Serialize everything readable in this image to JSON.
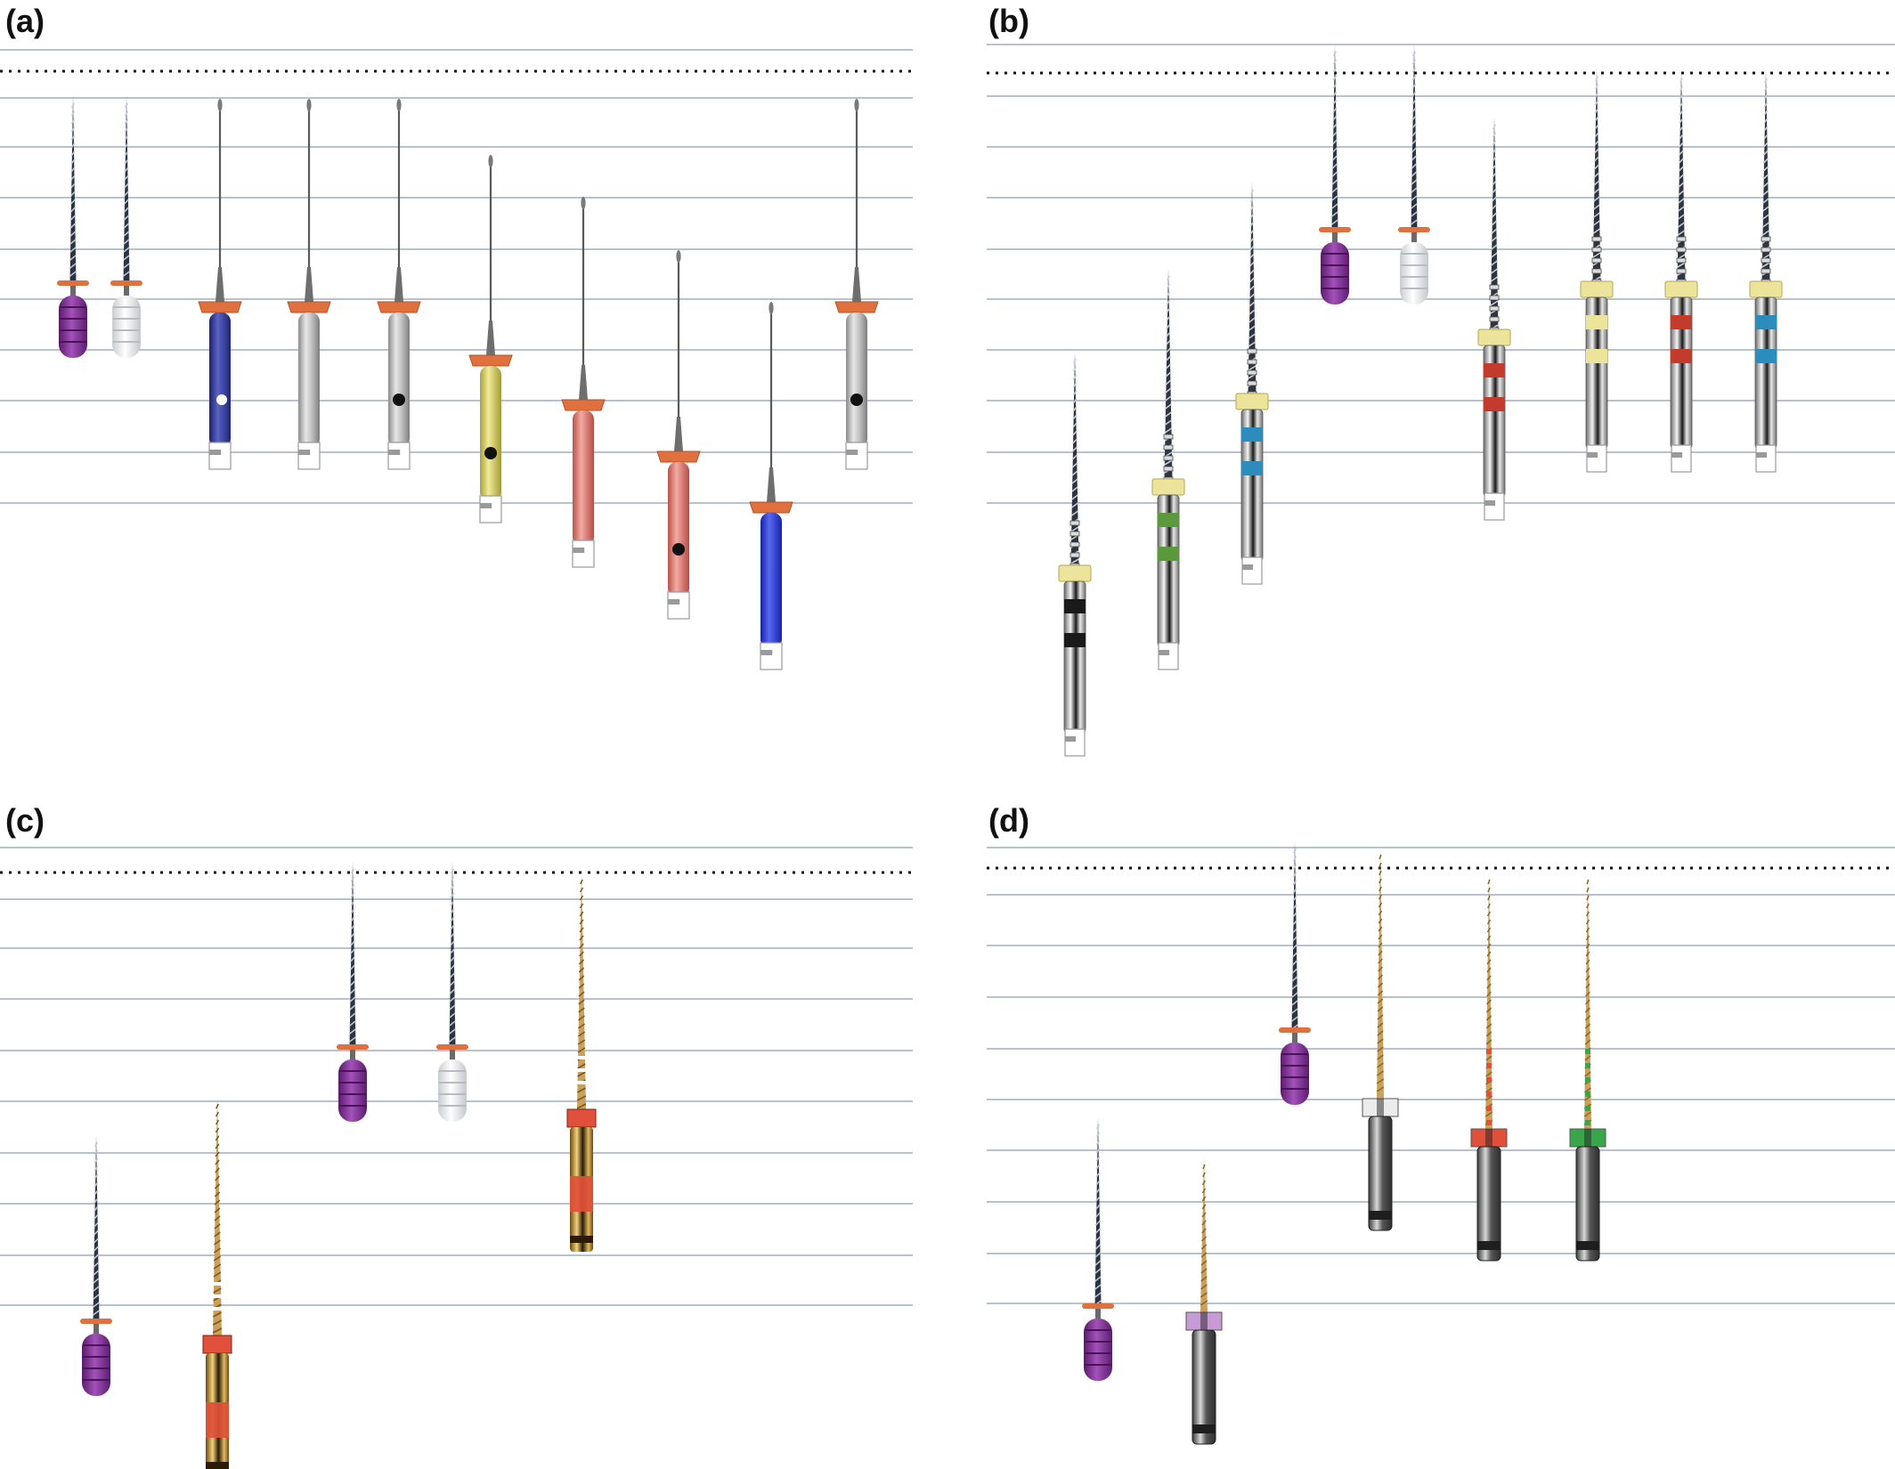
{
  "colors": {
    "guide_line": "#b7c1cf",
    "reference_line": "#111111",
    "stopper": "#e0703e",
    "handle_purple": "#7a2e8e",
    "handle_white": "#eef0f2",
    "steel": "#b9b9b9",
    "shaft_blue": "#2e3aa8",
    "shaft_yellow": "#d9d46a",
    "shaft_red": "#e07b72",
    "shaft_bright_blue": "#2336d6",
    "ring_cream": "#ece49a",
    "band_green": "#5b9a3c",
    "band_teal": "#2c8cbc",
    "band_red": "#c23b2c",
    "band_lilac": "#c79bd6",
    "gold": "#caa05a",
    "red_band_gold": "#e0503a",
    "ring_green": "#3aa64a"
  },
  "panels": [
    {
      "label": "(a)",
      "instruments": [
        {
          "kind": "hand",
          "handle_color": "purple"
        },
        {
          "kind": "hand",
          "handle_color": "white"
        },
        {
          "kind": "engine-shaft",
          "shaft_color": "dark-blue",
          "dot": "white"
        },
        {
          "kind": "engine-shaft",
          "shaft_color": "steel",
          "dot": "none"
        },
        {
          "kind": "engine-shaft",
          "shaft_color": "steel",
          "dot": "black"
        },
        {
          "kind": "engine-shaft",
          "shaft_color": "yellow",
          "dot": "black"
        },
        {
          "kind": "engine-shaft",
          "shaft_color": "red",
          "dot": "none"
        },
        {
          "kind": "engine-shaft",
          "shaft_color": "red",
          "dot": "black"
        },
        {
          "kind": "engine-shaft",
          "shaft_color": "bright-blue",
          "dot": "none"
        },
        {
          "kind": "engine-shaft",
          "shaft_color": "steel",
          "dot": "black"
        }
      ]
    },
    {
      "label": "(b)",
      "instruments": [
        {
          "kind": "engine-banded",
          "band_color": "black"
        },
        {
          "kind": "engine-banded",
          "band_color": "green"
        },
        {
          "kind": "engine-banded",
          "band_color": "teal"
        },
        {
          "kind": "hand",
          "handle_color": "purple"
        },
        {
          "kind": "hand",
          "handle_color": "white"
        },
        {
          "kind": "engine-banded",
          "band_color": "red"
        },
        {
          "kind": "engine-banded",
          "band_color": "yellow"
        },
        {
          "kind": "engine-banded",
          "band_color": "red"
        },
        {
          "kind": "engine-banded",
          "band_color": "teal"
        }
      ]
    },
    {
      "label": "(c)",
      "instruments": [
        {
          "kind": "hand",
          "handle_color": "purple"
        },
        {
          "kind": "engine-gold",
          "band_color": "red"
        },
        {
          "kind": "hand",
          "handle_color": "purple"
        },
        {
          "kind": "hand",
          "handle_color": "white"
        },
        {
          "kind": "engine-gold",
          "band_color": "red"
        }
      ]
    },
    {
      "label": "(d)",
      "instruments": [
        {
          "kind": "hand",
          "handle_color": "purple"
        },
        {
          "kind": "engine-ring",
          "ring_color": "lilac"
        },
        {
          "kind": "hand",
          "handle_color": "purple"
        },
        {
          "kind": "engine-ring",
          "ring_color": "white"
        },
        {
          "kind": "engine-ring",
          "ring_color": "red"
        },
        {
          "kind": "engine-ring",
          "ring_color": "green"
        }
      ]
    }
  ]
}
